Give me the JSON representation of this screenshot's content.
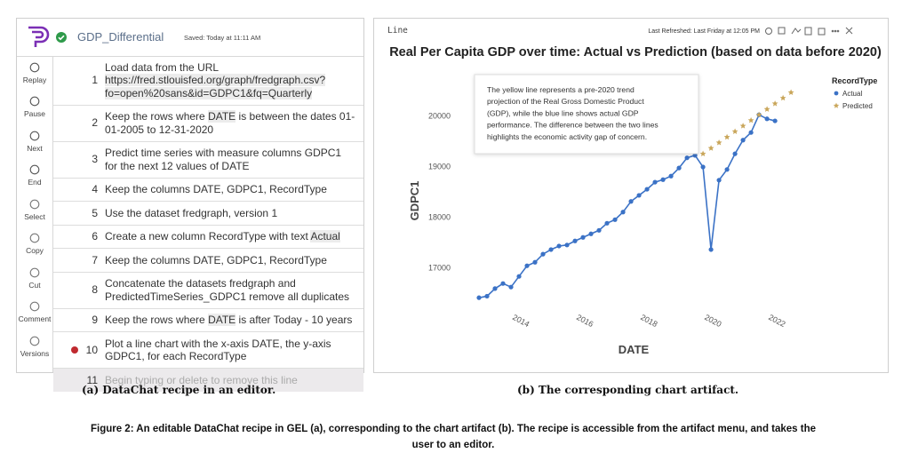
{
  "editor": {
    "recipe_name": "GDP_Differential",
    "saved": "Saved: Today at 11:11 AM",
    "toolbar": [
      "Replay",
      "Pause",
      "Next",
      "End",
      "Select",
      "Copy",
      "Cut",
      "Comment",
      "Versions"
    ],
    "steps": [
      {
        "number": "1",
        "parts": [
          {
            "text": "Load data from the URL "
          },
          {
            "text": "https://fred.stlouisfed.org/graph/fredgraph.csv?fo=open%20sans&id=GDPC1&fq=Quarterly",
            "highlight": true
          }
        ]
      },
      {
        "number": "2",
        "parts": [
          {
            "text": "Keep the rows where "
          },
          {
            "text": "DATE",
            "highlight": true
          },
          {
            "text": " is between the dates 01-01-2005 to 12-31-2020"
          }
        ]
      },
      {
        "number": "3",
        "parts": [
          {
            "text": "Predict time series with measure columns GDPC1 for the next 12 values of DATE"
          }
        ]
      },
      {
        "number": "4",
        "parts": [
          {
            "text": "Keep the columns DATE, GDPC1, RecordType"
          }
        ]
      },
      {
        "number": "5",
        "parts": [
          {
            "text": "Use the dataset fredgraph, version 1"
          }
        ]
      },
      {
        "number": "6",
        "parts": [
          {
            "text": "Create a new column RecordType with text "
          },
          {
            "text": "Actual",
            "highlight": true
          }
        ]
      },
      {
        "number": "7",
        "parts": [
          {
            "text": "Keep the columns DATE, GDPC1, RecordType"
          }
        ]
      },
      {
        "number": "8",
        "parts": [
          {
            "text": "Concatenate the datasets fredgraph and PredictedTimeSeries_GDPC1 remove all duplicates"
          }
        ]
      },
      {
        "number": "9",
        "parts": [
          {
            "text": "Keep the rows where "
          },
          {
            "text": "DATE",
            "highlight": true
          },
          {
            "text": " is after Today - 10 years"
          }
        ]
      },
      {
        "number": "10",
        "breakpoint": true,
        "parts": [
          {
            "text": "Plot a line chart with the x-axis DATE, the y-axis GDPC1, for each RecordType"
          }
        ]
      }
    ],
    "placeholder": {
      "number": "11",
      "text": "Begin typing or delete to remove this line"
    }
  },
  "chart_panel": {
    "header": "Line",
    "refreshed": "Last Refreshed: Last Friday at 12:05 PM"
  },
  "chart_data": {
    "type": "line",
    "title": "Real Per Capita GDP over time: Actual vs Prediction (based on data before 2020)",
    "annotation": [
      "The yellow line represents a pre-2020 trend",
      "projection of the Real Gross Domestic Product",
      "(GDP), while the blue line shows actual GDP",
      "performance. The difference between the two lines",
      "highlights the economic activity gap of concern."
    ],
    "x_label": "DATE",
    "y_label": "GDPC1",
    "legend_title": "RecordType",
    "legend_position": "top-right",
    "grid": false,
    "xlim": [
      2012.25,
      2023.08
    ],
    "ylim": [
      16230,
      20700
    ],
    "xticks": [
      2014,
      2016,
      2018,
      2020,
      2022
    ],
    "yticks": [
      17000,
      18000,
      19000,
      20000
    ],
    "series": [
      {
        "name": "Actual",
        "color": "#3b72c6",
        "marker": "circle",
        "x": [
          2012.75,
          2013,
          2013.25,
          2013.5,
          2013.75,
          2014,
          2014.25,
          2014.5,
          2014.75,
          2015,
          2015.25,
          2015.5,
          2015.75,
          2016,
          2016.25,
          2016.5,
          2016.75,
          2017,
          2017.25,
          2017.5,
          2017.75,
          2018,
          2018.25,
          2018.5,
          2018.75,
          2019,
          2019.25,
          2019.5,
          2019.75,
          2020,
          2020.25,
          2020.5,
          2020.75,
          2021,
          2021.25,
          2021.5,
          2021.75,
          2022
        ],
        "values": [
          16420,
          16450,
          16600,
          16700,
          16630,
          16840,
          17050,
          17120,
          17280,
          17370,
          17440,
          17460,
          17540,
          17610,
          17680,
          17750,
          17890,
          17960,
          18110,
          18320,
          18440,
          18560,
          18700,
          18750,
          18820,
          18980,
          19180,
          19230,
          19000,
          17370,
          18740,
          18950,
          19260,
          19530,
          19680,
          20030,
          19950,
          19910
        ]
      },
      {
        "name": "Predicted",
        "color": "#c9a65a",
        "marker": "star",
        "x": [
          2019.75,
          2020,
          2020.25,
          2020.5,
          2020.75,
          2021,
          2021.25,
          2021.5,
          2021.75,
          2022,
          2022.25,
          2022.5
        ],
        "values": [
          19260,
          19370,
          19480,
          19590,
          19700,
          19810,
          19920,
          20030,
          20140,
          20250,
          20360,
          20470
        ]
      }
    ]
  },
  "captions": {
    "a": "(a) DataChat recipe in an editor.",
    "b": "(b) The corresponding chart artifact.",
    "figure": "Figure 2: An editable DataChat recipe in GEL (a), corresponding to the chart artifact (b). The recipe is accessible from the artifact menu, and takes the user to an editor."
  }
}
